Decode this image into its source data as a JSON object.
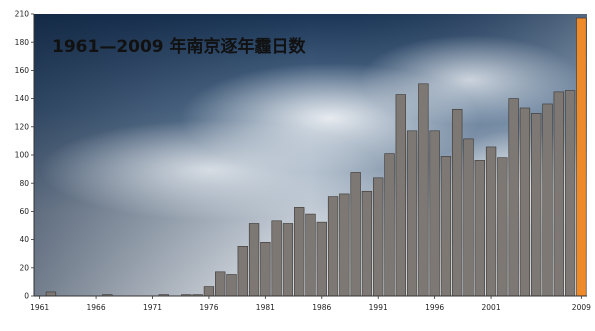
{
  "chart_data": {
    "type": "bar",
    "title": "1961—2009 年南京逐年霾日数",
    "xlabel": "",
    "ylabel": "",
    "ylim": [
      0,
      210
    ],
    "yticks": [
      "0",
      "20",
      "40",
      "60",
      "80",
      "100",
      "120",
      "140",
      "160",
      "180",
      "210"
    ],
    "xticks": [
      "1961",
      "1966",
      "1971",
      "1976",
      "1981",
      "1986",
      "1991",
      "1996",
      "2001",
      "2009"
    ],
    "grid": false,
    "legend": "none",
    "bar_color": "#7d7873",
    "highlight_color": "#ee8a2a",
    "categories": [
      1961,
      1962,
      1963,
      1964,
      1965,
      1966,
      1967,
      1968,
      1969,
      1970,
      1971,
      1972,
      1973,
      1974,
      1975,
      1976,
      1977,
      1978,
      1979,
      1980,
      1981,
      1982,
      1983,
      1984,
      1985,
      1986,
      1987,
      1988,
      1989,
      1990,
      1991,
      1992,
      1993,
      1994,
      1995,
      1996,
      1997,
      1998,
      1999,
      2000,
      2001,
      2002,
      2003,
      2004,
      2005,
      2006,
      2007,
      2008,
      2009
    ],
    "values": [
      0,
      3,
      0,
      0,
      0,
      0,
      1,
      0,
      0,
      0,
      0,
      1,
      0,
      1,
      1,
      7,
      18,
      16,
      37,
      54,
      40,
      56,
      54,
      66,
      61,
      55,
      74,
      76,
      92,
      78,
      88,
      106,
      150,
      123,
      158,
      123,
      104,
      139,
      117,
      101,
      111,
      103,
      147,
      140,
      136,
      143,
      152,
      153,
      207
    ],
    "highlight_index": 48
  }
}
